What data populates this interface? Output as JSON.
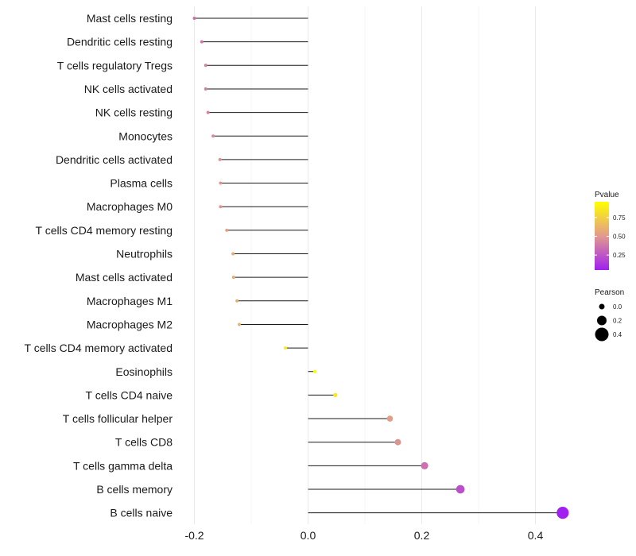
{
  "chart_data": {
    "type": "lollipop",
    "title": "",
    "xlabel": "",
    "ylabel": "",
    "xlim": [
      -0.25,
      0.5
    ],
    "x_ticks": [
      {
        "value": -0.2,
        "label": "-0.2"
      },
      {
        "value": 0.0,
        "label": "0.0"
      },
      {
        "value": 0.2,
        "label": "0.2"
      },
      {
        "value": 0.4,
        "label": "0.4"
      }
    ],
    "grid": true,
    "points": [
      {
        "category": "Mast cells resting",
        "pearson": -0.2,
        "pvalue": 0.35
      },
      {
        "category": "Dendritic cells resting",
        "pearson": -0.187,
        "pvalue": 0.38
      },
      {
        "category": "T cells regulatory  Tregs",
        "pearson": -0.18,
        "pvalue": 0.4
      },
      {
        "category": "NK cells activated",
        "pearson": -0.18,
        "pvalue": 0.4
      },
      {
        "category": "NK cells resting",
        "pearson": -0.176,
        "pvalue": 0.42
      },
      {
        "category": "Monocytes",
        "pearson": -0.167,
        "pvalue": 0.44
      },
      {
        "category": "Dendritic cells activated",
        "pearson": -0.155,
        "pvalue": 0.48
      },
      {
        "category": "Plasma cells",
        "pearson": -0.154,
        "pvalue": 0.49
      },
      {
        "category": "Macrophages M0",
        "pearson": -0.154,
        "pvalue": 0.49
      },
      {
        "category": "T cells CD4 memory resting",
        "pearson": -0.143,
        "pvalue": 0.53
      },
      {
        "category": "Neutrophils",
        "pearson": -0.132,
        "pvalue": 0.58
      },
      {
        "category": "Mast cells activated",
        "pearson": -0.131,
        "pvalue": 0.58
      },
      {
        "category": "Macrophages M1",
        "pearson": -0.125,
        "pvalue": 0.6
      },
      {
        "category": "Macrophages M2",
        "pearson": -0.121,
        "pvalue": 0.62
      },
      {
        "category": "T cells CD4 memory activated",
        "pearson": -0.04,
        "pvalue": 0.88
      },
      {
        "category": "Eosinophils",
        "pearson": 0.012,
        "pvalue": 0.96
      },
      {
        "category": "T cells CD4 naive",
        "pearson": 0.048,
        "pvalue": 0.86
      },
      {
        "category": "T cells follicular helper",
        "pearson": 0.144,
        "pvalue": 0.52
      },
      {
        "category": "T cells CD8",
        "pearson": 0.158,
        "pvalue": 0.48
      },
      {
        "category": "T cells gamma delta",
        "pearson": 0.205,
        "pvalue": 0.35
      },
      {
        "category": "B cells memory",
        "pearson": 0.268,
        "pvalue": 0.23
      },
      {
        "category": "B cells naive",
        "pearson": 0.448,
        "pvalue": 0.05
      }
    ],
    "legend": {
      "color": {
        "title": "Pvalue",
        "ticks": [
          {
            "value": 0.75,
            "label": "0.75"
          },
          {
            "value": 0.5,
            "label": "0.50"
          },
          {
            "value": 0.25,
            "label": "0.25"
          }
        ],
        "range": [
          0.05,
          0.96
        ],
        "low_color": "#A020F0",
        "mid_color": "#E29A8E",
        "high_color": "#FFFF00"
      },
      "size": {
        "title": "Pearson",
        "entries": [
          {
            "value": 0.0,
            "label": "0.0"
          },
          {
            "value": 0.2,
            "label": "0.2"
          },
          {
            "value": 0.4,
            "label": "0.4"
          }
        ]
      }
    }
  }
}
